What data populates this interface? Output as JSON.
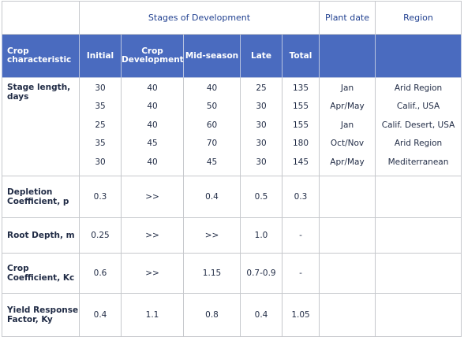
{
  "header": {
    "stages_group": "Stages of Development",
    "plant_date": "Plant date",
    "region": "Region"
  },
  "columns": {
    "crop_characteristic": "Crop characteristic",
    "initial": "Initial",
    "crop_development": "Crop Development",
    "mid_season": "Mid-season",
    "late": "Late",
    "total": "Total"
  },
  "rows": {
    "stage_length": {
      "label": "Stage length, days",
      "initial": [
        "30",
        "35",
        "25",
        "35",
        "30"
      ],
      "development": [
        "40",
        "40",
        "40",
        "45",
        "40"
      ],
      "mid": [
        "40",
        "50",
        "60",
        "70",
        "45"
      ],
      "late": [
        "25",
        "30",
        "30",
        "30",
        "30"
      ],
      "total": [
        "135",
        "155",
        "155",
        "180",
        "145"
      ],
      "plant_date": [
        "Jan",
        "Apr/May",
        "Jan",
        "Oct/Nov",
        "Apr/May"
      ],
      "region": [
        "Arid Region",
        "Calif., USA",
        "Calif. Desert, USA",
        "Arid Region",
        "Mediterranean"
      ]
    },
    "depletion": {
      "label": "Depletion Coefficient, p",
      "initial": "0.3",
      "development": ">>",
      "mid": "0.4",
      "late": "0.5",
      "total": "0.3"
    },
    "root_depth": {
      "label": "Root Depth, m",
      "initial": "0.25",
      "development": ">>",
      "mid": ">>",
      "late": "1.0",
      "total": "-"
    },
    "crop_coefficient": {
      "label": "Crop Coefficient, Kc",
      "initial": "0.6",
      "development": ">>",
      "mid": "1.15",
      "late": "0.7-0.9",
      "total": "-"
    },
    "yield_response": {
      "label": "Yield Response Factor, Ky",
      "initial": "0.4",
      "development": "1.1",
      "mid": "0.8",
      "late": "0.4",
      "total": "1.05"
    }
  }
}
